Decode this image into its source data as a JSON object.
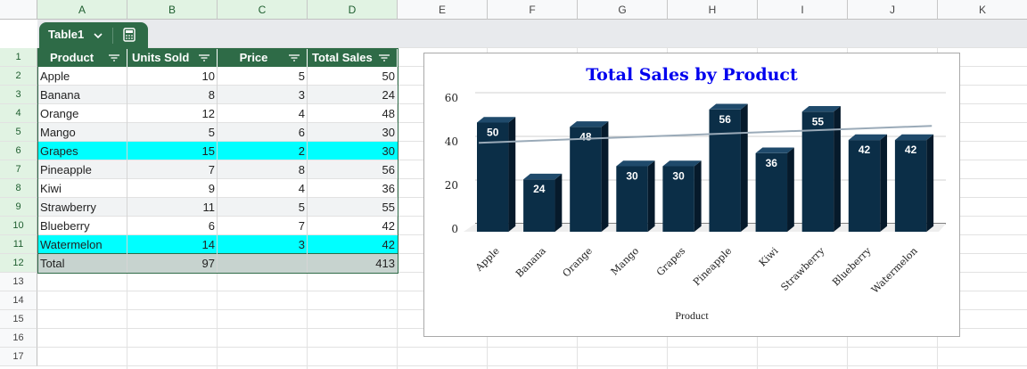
{
  "columns": [
    "A",
    "B",
    "C",
    "D",
    "E",
    "F",
    "G",
    "H",
    "I",
    "J",
    "K"
  ],
  "rows": [
    "1",
    "2",
    "3",
    "4",
    "5",
    "6",
    "7",
    "8",
    "9",
    "10",
    "11",
    "12",
    "13",
    "14",
    "15",
    "16",
    "17"
  ],
  "table": {
    "name": "Table1",
    "headers": [
      "Product",
      "Units Sold",
      "Price",
      "Total Sales"
    ],
    "rows": [
      [
        "Apple",
        "10",
        "5",
        "50"
      ],
      [
        "Banana",
        "8",
        "3",
        "24"
      ],
      [
        "Orange",
        "12",
        "4",
        "48"
      ],
      [
        "Mango",
        "5",
        "6",
        "30"
      ],
      [
        "Grapes",
        "15",
        "2",
        "30"
      ],
      [
        "Pineapple",
        "7",
        "8",
        "56"
      ],
      [
        "Kiwi",
        "9",
        "4",
        "36"
      ],
      [
        "Strawberry",
        "11",
        "5",
        "55"
      ],
      [
        "Blueberry",
        "6",
        "7",
        "42"
      ],
      [
        "Watermelon",
        "14",
        "3",
        "42"
      ]
    ],
    "highlighted_rows": [
      4,
      9
    ],
    "highlight_color": "#00ffff",
    "header_color": "#2e6b47",
    "total": [
      "Total",
      "97",
      "",
      "413"
    ]
  },
  "chart_data": {
    "type": "bar",
    "title": "Total Sales by Product",
    "xlabel": "Product",
    "ylabel": "",
    "categories": [
      "Apple",
      "Banana",
      "Orange",
      "Mango",
      "Grapes",
      "Pineapple",
      "Kiwi",
      "Strawberry",
      "Blueberry",
      "Watermelon"
    ],
    "values": [
      50,
      24,
      48,
      30,
      30,
      56,
      36,
      55,
      42,
      42
    ],
    "yticks": [
      0,
      20,
      40,
      60
    ],
    "ylim": [
      0,
      60
    ],
    "trendline": true,
    "bar_color": "#0b2e47",
    "trend_color": "#9aaab8",
    "title_color": "#0000ee",
    "grid": true,
    "style": "3d-column"
  }
}
